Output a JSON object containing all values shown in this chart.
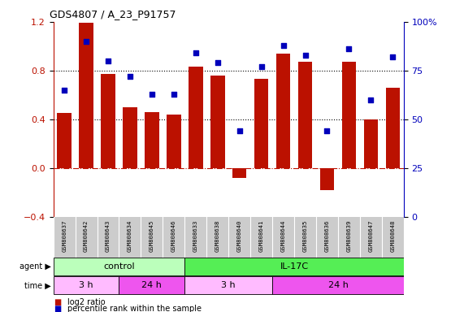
{
  "title": "GDS4807 / A_23_P91757",
  "samples": [
    "GSM808637",
    "GSM808642",
    "GSM808643",
    "GSM808634",
    "GSM808645",
    "GSM808646",
    "GSM808633",
    "GSM808638",
    "GSM808640",
    "GSM808641",
    "GSM808644",
    "GSM808635",
    "GSM808636",
    "GSM808639",
    "GSM808647",
    "GSM808648"
  ],
  "log2_ratio": [
    0.45,
    1.19,
    0.77,
    0.5,
    0.46,
    0.44,
    0.83,
    0.76,
    -0.08,
    0.73,
    0.94,
    0.87,
    -0.18,
    0.87,
    0.4,
    0.66
  ],
  "percentile": [
    65,
    90,
    80,
    72,
    63,
    63,
    84,
    79,
    44,
    77,
    88,
    83,
    44,
    86,
    60,
    82
  ],
  "agent_groups": [
    {
      "label": "control",
      "start": 0,
      "end": 6,
      "color": "#bbffbb"
    },
    {
      "label": "IL-17C",
      "start": 6,
      "end": 16,
      "color": "#55ee55"
    }
  ],
  "time_groups": [
    {
      "label": "3 h",
      "start": 0,
      "end": 3,
      "color": "#ffbbff"
    },
    {
      "label": "24 h",
      "start": 3,
      "end": 6,
      "color": "#ee55ee"
    },
    {
      "label": "3 h",
      "start": 6,
      "end": 10,
      "color": "#ffbbff"
    },
    {
      "label": "24 h",
      "start": 10,
      "end": 16,
      "color": "#ee55ee"
    }
  ],
  "bar_color": "#bb1100",
  "dot_color": "#0000bb",
  "ylim_left": [
    -0.4,
    1.2
  ],
  "ylim_right": [
    0,
    100
  ],
  "yticks_left": [
    -0.4,
    0.0,
    0.4,
    0.8,
    1.2
  ],
  "yticks_right": [
    0,
    25,
    50,
    75,
    100
  ],
  "zero_line_color": "#bb1100",
  "label_bg": "#cccccc"
}
